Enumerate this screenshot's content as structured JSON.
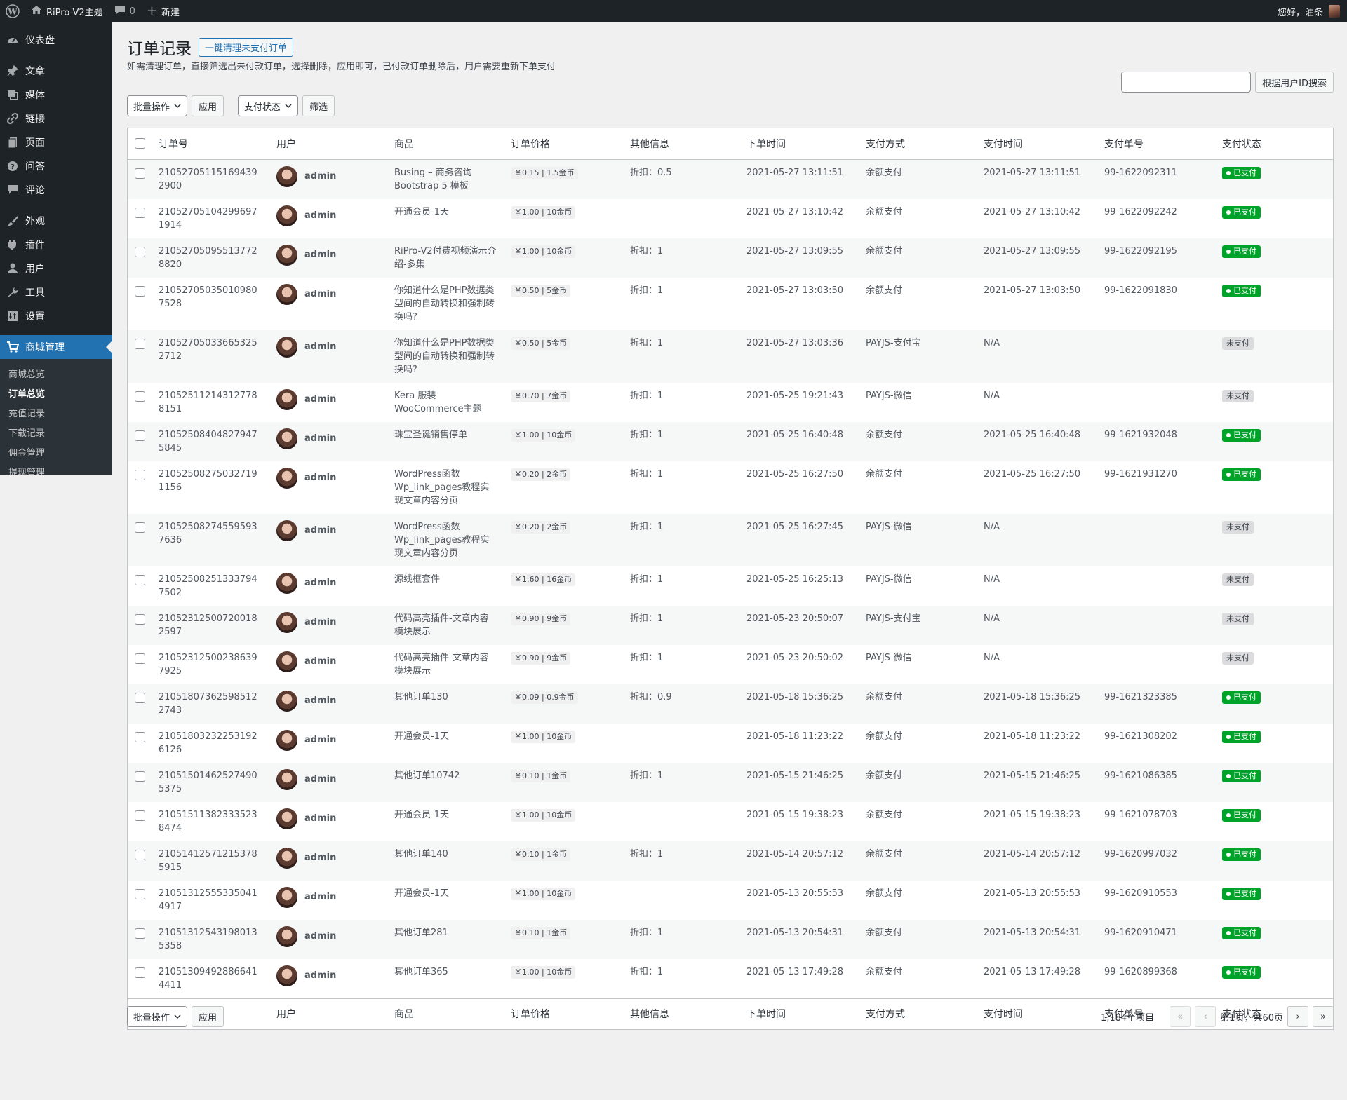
{
  "adminbar": {
    "site_name": "RiPro-V2主题",
    "comments_count": "0",
    "new_label": "新建",
    "greeting": "您好，油条"
  },
  "sidebar": {
    "items": [
      {
        "label": "仪表盘",
        "icon": "dashboard-icon"
      },
      {
        "label": "文章",
        "icon": "pin-icon"
      },
      {
        "label": "媒体",
        "icon": "media-icon"
      },
      {
        "label": "链接",
        "icon": "link-icon"
      },
      {
        "label": "页面",
        "icon": "page-icon"
      },
      {
        "label": "问答",
        "icon": "question-icon"
      },
      {
        "label": "评论",
        "icon": "comment-icon"
      },
      {
        "label": "外观",
        "icon": "brush-icon"
      },
      {
        "label": "插件",
        "icon": "plugin-icon"
      },
      {
        "label": "用户",
        "icon": "user-icon"
      },
      {
        "label": "工具",
        "icon": "wrench-icon"
      },
      {
        "label": "设置",
        "icon": "settings-icon"
      },
      {
        "label": "商城管理",
        "icon": "cart-icon"
      }
    ],
    "submenu": [
      "商城总览",
      "订单总览",
      "充值记录",
      "下载记录",
      "佣金管理",
      "提现管理"
    ]
  },
  "page": {
    "title": "订单记录",
    "action_label": "一键清理未支付订单",
    "description": "如需清理订单，直接筛选出未付款订单，选择删除，应用即可，已付款订单删除后，用户需要重新下单支付"
  },
  "toolbar": {
    "bulk_label": "批量操作",
    "apply_label": "应用",
    "status_filter_label": "支付状态",
    "filter_label": "筛选",
    "search_placeholder": "",
    "search_button": "根据用户ID搜索"
  },
  "columns": [
    "订单号",
    "用户",
    "商品",
    "订单价格",
    "其他信息",
    "下单时间",
    "支付方式",
    "支付时间",
    "支付单号",
    "支付状态"
  ],
  "orders": [
    {
      "no": "210527051151694392900",
      "user": "admin",
      "product": "Busing – 商务咨询 Bootstrap 5 模板",
      "price": "￥0.15 | 1.5金币",
      "info": "折扣：0.5",
      "created": "2021-05-27 13:11:51",
      "method": "余额支付",
      "paid_at": "2021-05-27 13:11:51",
      "pay_no": "99-1622092311",
      "status": "已支付"
    },
    {
      "no": "210527051042996971914",
      "user": "admin",
      "product": "开通会员-1天",
      "price": "￥1.00 | 10金币",
      "info": "",
      "created": "2021-05-27 13:10:42",
      "method": "余额支付",
      "paid_at": "2021-05-27 13:10:42",
      "pay_no": "99-1622092242",
      "status": "已支付"
    },
    {
      "no": "210527050955137728820",
      "user": "admin",
      "product": "RiPro-V2付费视频演示介绍-多集",
      "price": "￥1.00 | 10金币",
      "info": "折扣：1",
      "created": "2021-05-27 13:09:55",
      "method": "余额支付",
      "paid_at": "2021-05-27 13:09:55",
      "pay_no": "99-1622092195",
      "status": "已支付"
    },
    {
      "no": "210527050350109807528",
      "user": "admin",
      "product": "你知道什么是PHP数据类型间的自动转换和强制转换吗?",
      "price": "￥0.50 | 5金币",
      "info": "折扣：1",
      "created": "2021-05-27 13:03:50",
      "method": "余额支付",
      "paid_at": "2021-05-27 13:03:50",
      "pay_no": "99-1622091830",
      "status": "已支付"
    },
    {
      "no": "210527050336653252712",
      "user": "admin",
      "product": "你知道什么是PHP数据类型间的自动转换和强制转换吗?",
      "price": "￥0.50 | 5金币",
      "info": "折扣：1",
      "created": "2021-05-27 13:03:36",
      "method": "PAYJS-支付宝",
      "paid_at": "N/A",
      "pay_no": "",
      "status": "未支付"
    },
    {
      "no": "210525112143127788151",
      "user": "admin",
      "product": "Kera 服装WooCommerce主题",
      "price": "￥0.70 | 7金币",
      "info": "折扣：1",
      "created": "2021-05-25 19:21:43",
      "method": "PAYJS-微信",
      "paid_at": "N/A",
      "pay_no": "",
      "status": "未支付"
    },
    {
      "no": "210525084048279475845",
      "user": "admin",
      "product": "珠宝圣诞销售停单",
      "price": "￥1.00 | 10金币",
      "info": "折扣：1",
      "created": "2021-05-25 16:40:48",
      "method": "余额支付",
      "paid_at": "2021-05-25 16:40:48",
      "pay_no": "99-1621932048",
      "status": "已支付"
    },
    {
      "no": "210525082750327191156",
      "user": "admin",
      "product": "WordPress函数Wp_link_pages教程实现文章内容分页",
      "price": "￥0.20 | 2金币",
      "info": "折扣：1",
      "created": "2021-05-25 16:27:50",
      "method": "余额支付",
      "paid_at": "2021-05-25 16:27:50",
      "pay_no": "99-1621931270",
      "status": "已支付"
    },
    {
      "no": "210525082745595937636",
      "user": "admin",
      "product": "WordPress函数Wp_link_pages教程实现文章内容分页",
      "price": "￥0.20 | 2金币",
      "info": "折扣：1",
      "created": "2021-05-25 16:27:45",
      "method": "PAYJS-微信",
      "paid_at": "N/A",
      "pay_no": "",
      "status": "未支付"
    },
    {
      "no": "210525082513337947502",
      "user": "admin",
      "product": "源线框套件",
      "price": "￥1.60 | 16金币",
      "info": "折扣：1",
      "created": "2021-05-25 16:25:13",
      "method": "PAYJS-微信",
      "paid_at": "N/A",
      "pay_no": "",
      "status": "未支付"
    },
    {
      "no": "210523125007200182597",
      "user": "admin",
      "product": "代码高亮插件-文章内容模块展示",
      "price": "￥0.90 | 9金币",
      "info": "折扣：1",
      "created": "2021-05-23 20:50:07",
      "method": "PAYJS-支付宝",
      "paid_at": "N/A",
      "pay_no": "",
      "status": "未支付"
    },
    {
      "no": "210523125002386397925",
      "user": "admin",
      "product": "代码高亮插件-文章内容模块展示",
      "price": "￥0.90 | 9金币",
      "info": "折扣：1",
      "created": "2021-05-23 20:50:02",
      "method": "PAYJS-微信",
      "paid_at": "N/A",
      "pay_no": "",
      "status": "未支付"
    },
    {
      "no": "210518073625985122743",
      "user": "admin",
      "product": "其他订单130",
      "price": "￥0.09 | 0.9金币",
      "info": "折扣：0.9",
      "created": "2021-05-18 15:36:25",
      "method": "余额支付",
      "paid_at": "2021-05-18 15:36:25",
      "pay_no": "99-1621323385",
      "status": "已支付"
    },
    {
      "no": "210518032322531926126",
      "user": "admin",
      "product": "开通会员-1天",
      "price": "￥1.00 | 10金币",
      "info": "",
      "created": "2021-05-18 11:23:22",
      "method": "余额支付",
      "paid_at": "2021-05-18 11:23:22",
      "pay_no": "99-1621308202",
      "status": "已支付"
    },
    {
      "no": "210515014625274905375",
      "user": "admin",
      "product": "其他订单10742",
      "price": "￥0.10 | 1金币",
      "info": "折扣：1",
      "created": "2021-05-15 21:46:25",
      "method": "余额支付",
      "paid_at": "2021-05-15 21:46:25",
      "pay_no": "99-1621086385",
      "status": "已支付"
    },
    {
      "no": "210515113823335238474",
      "user": "admin",
      "product": "开通会员-1天",
      "price": "￥1.00 | 10金币",
      "info": "",
      "created": "2021-05-15 19:38:23",
      "method": "余额支付",
      "paid_at": "2021-05-15 19:38:23",
      "pay_no": "99-1621078703",
      "status": "已支付"
    },
    {
      "no": "210514125712153785915",
      "user": "admin",
      "product": "其他订单140",
      "price": "￥0.10 | 1金币",
      "info": "折扣：1",
      "created": "2021-05-14 20:57:12",
      "method": "余额支付",
      "paid_at": "2021-05-14 20:57:12",
      "pay_no": "99-1620997032",
      "status": "已支付"
    },
    {
      "no": "210513125553350414917",
      "user": "admin",
      "product": "开通会员-1天",
      "price": "￥1.00 | 10金币",
      "info": "",
      "created": "2021-05-13 20:55:53",
      "method": "余额支付",
      "paid_at": "2021-05-13 20:55:53",
      "pay_no": "99-1620910553",
      "status": "已支付"
    },
    {
      "no": "210513125431980135358",
      "user": "admin",
      "product": "其他订单281",
      "price": "￥0.10 | 1金币",
      "info": "折扣：1",
      "created": "2021-05-13 20:54:31",
      "method": "余额支付",
      "paid_at": "2021-05-13 20:54:31",
      "pay_no": "99-1620910471",
      "status": "已支付"
    },
    {
      "no": "210513094928866414411",
      "user": "admin",
      "product": "其他订单365",
      "price": "￥1.00 | 10金币",
      "info": "折扣：1",
      "created": "2021-05-13 17:49:28",
      "method": "余额支付",
      "paid_at": "2021-05-13 17:49:28",
      "pay_no": "99-1620899368",
      "status": "已支付"
    }
  ],
  "pagination": {
    "total": "1,184个项目",
    "first": "«",
    "prev": "‹",
    "page_info": "第1页，共60页",
    "next": "›",
    "last": "»"
  },
  "colors": {
    "accent": "#2271b1",
    "paid": "#00a32a",
    "sidebar": "#1d2327"
  }
}
